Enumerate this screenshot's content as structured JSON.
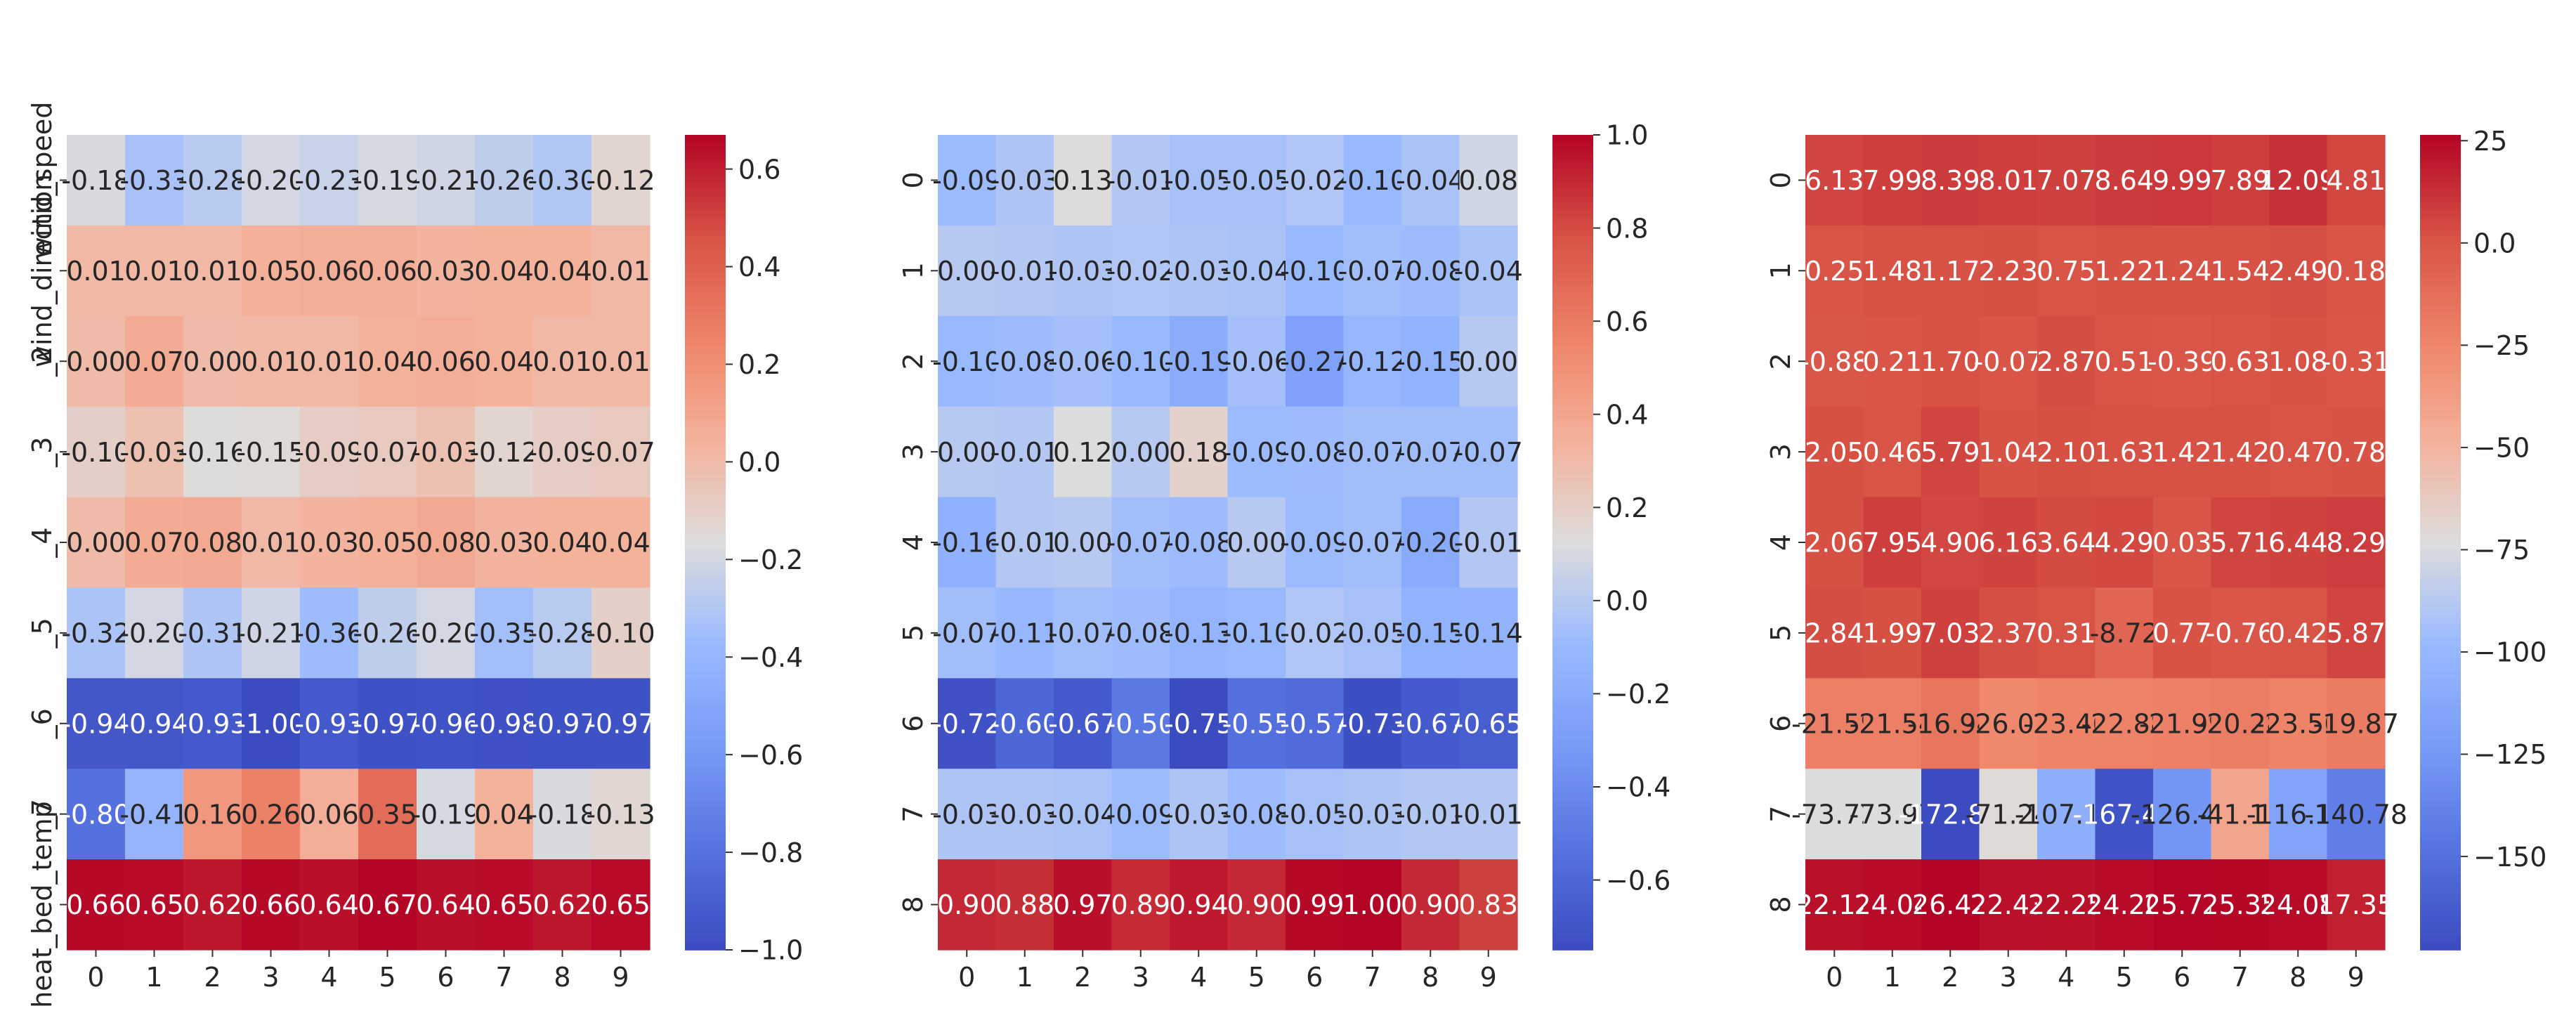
{
  "chart_data": [
    {
      "type": "heatmap",
      "x_labels": [
        "0",
        "1",
        "2",
        "3",
        "4",
        "5",
        "6",
        "7",
        "8",
        "9"
      ],
      "y_labels": [
        "wind_speed",
        "wind_direction",
        "_2",
        "_3",
        "_4",
        "_5",
        "_6",
        "_7",
        "heat_bed_temp"
      ],
      "values": [
        [
          -0.18,
          -0.33,
          -0.28,
          -0.2,
          -0.23,
          -0.19,
          -0.21,
          -0.26,
          -0.3,
          -0.12
        ],
        [
          0.01,
          0.01,
          0.01,
          0.05,
          0.06,
          0.06,
          0.03,
          0.04,
          0.04,
          0.01
        ],
        [
          0.0,
          0.07,
          0.0,
          0.01,
          0.01,
          0.04,
          0.06,
          0.04,
          0.01,
          0.01
        ],
        [
          -0.1,
          -0.03,
          -0.16,
          -0.15,
          -0.09,
          -0.07,
          -0.03,
          -0.12,
          -0.09,
          -0.07
        ],
        [
          0.0,
          0.07,
          0.08,
          0.01,
          0.03,
          0.05,
          0.08,
          0.03,
          0.04,
          0.04
        ],
        [
          -0.32,
          -0.2,
          -0.31,
          -0.21,
          -0.36,
          -0.26,
          -0.2,
          -0.35,
          -0.28,
          -0.1
        ],
        [
          -0.94,
          -0.94,
          -0.93,
          -1.0,
          -0.93,
          -0.97,
          -0.96,
          -0.98,
          -0.97,
          -0.97
        ],
        [
          -0.8,
          -0.41,
          0.16,
          0.26,
          0.06,
          0.35,
          -0.19,
          0.04,
          -0.18,
          -0.13
        ],
        [
          0.66,
          0.65,
          0.62,
          0.66,
          0.64,
          0.67,
          0.64,
          0.65,
          0.62,
          0.65
        ]
      ],
      "colorbar_ticks": [
        0.6,
        0.4,
        0.2,
        0.0,
        -0.2,
        -0.4,
        -0.6,
        -0.8,
        -1.0
      ],
      "vmin": -1.0,
      "vmax": 0.67,
      "colormap": "coolwarm"
    },
    {
      "type": "heatmap",
      "x_labels": [
        "0",
        "1",
        "2",
        "3",
        "4",
        "5",
        "6",
        "7",
        "8",
        "9"
      ],
      "y_labels": [
        "0",
        "1",
        "2",
        "3",
        "4",
        "5",
        "6",
        "7",
        "8"
      ],
      "values": [
        [
          -0.09,
          -0.03,
          0.13,
          -0.01,
          -0.05,
          -0.05,
          -0.02,
          -0.1,
          -0.04,
          0.08
        ],
        [
          0.0,
          -0.01,
          -0.03,
          -0.02,
          -0.03,
          -0.04,
          -0.1,
          -0.07,
          -0.08,
          -0.04
        ],
        [
          -0.1,
          -0.08,
          -0.06,
          -0.1,
          -0.19,
          -0.06,
          -0.27,
          -0.12,
          -0.15,
          0.0
        ],
        [
          0.0,
          -0.01,
          0.12,
          0.0,
          0.18,
          -0.09,
          -0.08,
          -0.07,
          -0.07,
          -0.07
        ],
        [
          -0.16,
          -0.01,
          -0.0,
          -0.07,
          -0.08,
          -0.0,
          -0.09,
          -0.07,
          -0.2,
          -0.01
        ],
        [
          -0.07,
          -0.11,
          -0.07,
          -0.08,
          -0.13,
          -0.1,
          -0.02,
          -0.05,
          -0.15,
          -0.14
        ],
        [
          -0.72,
          -0.6,
          -0.67,
          -0.5,
          -0.75,
          -0.55,
          -0.57,
          -0.73,
          -0.67,
          -0.65
        ],
        [
          -0.03,
          -0.03,
          -0.04,
          -0.09,
          -0.03,
          -0.08,
          -0.05,
          -0.03,
          -0.01,
          -0.01
        ],
        [
          0.9,
          0.88,
          0.97,
          0.89,
          0.94,
          0.9,
          0.99,
          1.0,
          0.9,
          0.83
        ]
      ],
      "colorbar_ticks": [
        1.0,
        0.8,
        0.6,
        0.4,
        0.2,
        0.0,
        -0.2,
        -0.4,
        -0.6
      ],
      "vmin": -0.75,
      "vmax": 1.0,
      "colormap": "coolwarm"
    },
    {
      "type": "heatmap",
      "x_labels": [
        "0",
        "1",
        "2",
        "3",
        "4",
        "5",
        "6",
        "7",
        "8",
        "9"
      ],
      "y_labels": [
        "0",
        "1",
        "2",
        "3",
        "4",
        "5",
        "6",
        "7",
        "8"
      ],
      "values": [
        [
          6.13,
          7.99,
          8.39,
          8.01,
          7.07,
          8.64,
          9.99,
          7.89,
          12.09,
          4.81
        ],
        [
          0.25,
          1.48,
          1.17,
          2.23,
          0.75,
          1.22,
          1.24,
          1.54,
          2.49,
          0.18
        ],
        [
          -0.88,
          0.21,
          1.7,
          -0.07,
          2.87,
          0.51,
          -0.39,
          0.63,
          1.08,
          -0.31
        ],
        [
          2.05,
          0.46,
          5.79,
          1.04,
          2.1,
          1.63,
          1.42,
          1.42,
          0.47,
          0.78
        ],
        [
          2.06,
          7.95,
          4.9,
          6.16,
          3.64,
          4.29,
          0.03,
          5.71,
          6.44,
          8.29
        ],
        [
          2.84,
          1.99,
          7.03,
          2.37,
          0.31,
          -8.72,
          0.77,
          -0.76,
          0.42,
          5.87
        ],
        [
          -21.59,
          -21.54,
          -16.94,
          -26.02,
          -23.46,
          -22.88,
          -21.99,
          -20.28,
          -23.5,
          -19.87
        ],
        [
          -73.72,
          -73.97,
          -172.83,
          -71.24,
          -107.16,
          -167.48,
          -126.4,
          -41.11,
          -116.14,
          -140.78
        ],
        [
          22.12,
          24.04,
          26.42,
          22.43,
          22.25,
          24.2,
          25.77,
          25.35,
          24.08,
          17.35
        ]
      ],
      "colorbar_ticks": [
        25,
        0,
        -25,
        -50,
        -75,
        -100,
        -125,
        -150
      ],
      "vmin": -172.83,
      "vmax": 26.42,
      "colormap": "coolwarm"
    }
  ]
}
